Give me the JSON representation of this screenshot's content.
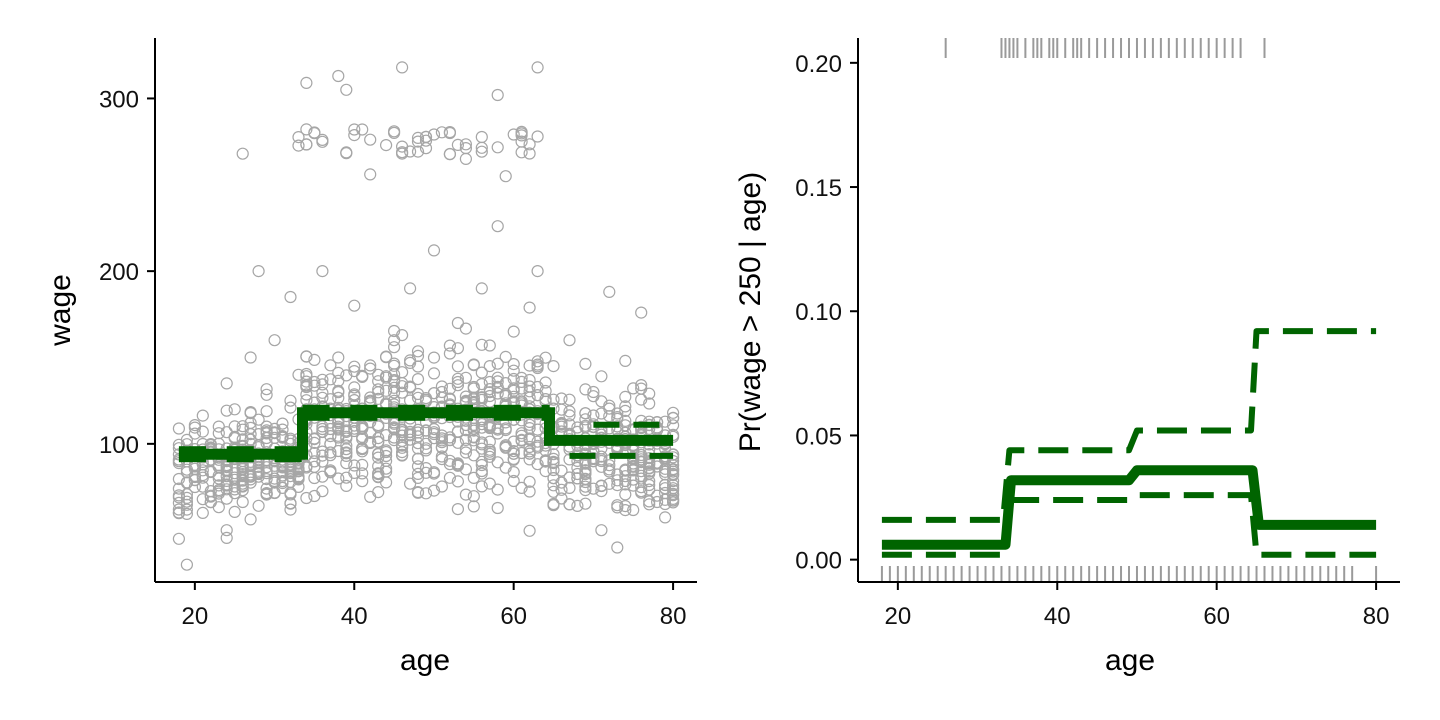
{
  "colors": {
    "fit": "#006400",
    "points": "#a6a6a6",
    "rug": "#9a9a9a",
    "axis": "#000000"
  },
  "chart_data": [
    {
      "type": "scatter",
      "title": "",
      "xlabel": "age",
      "ylabel": "wage",
      "xlim": [
        15,
        83
      ],
      "ylim": [
        20,
        335
      ],
      "xticks": [
        20,
        40,
        60,
        80
      ],
      "yticks": [
        100,
        200,
        300
      ],
      "grid": false,
      "legend": "none",
      "scatter_sample": [
        [
          18,
          62
        ],
        [
          18,
          45
        ],
        [
          19,
          30
        ],
        [
          19,
          85
        ],
        [
          20,
          75
        ],
        [
          21,
          60
        ],
        [
          22,
          95
        ],
        [
          22,
          70
        ],
        [
          23,
          110
        ],
        [
          24,
          135
        ],
        [
          24,
          50
        ],
        [
          25,
          120
        ],
        [
          26,
          268
        ],
        [
          26,
          90
        ],
        [
          27,
          150
        ],
        [
          28,
          200
        ],
        [
          29,
          110
        ],
        [
          30,
          160
        ],
        [
          31,
          95
        ],
        [
          32,
          185
        ],
        [
          32,
          125
        ],
        [
          33,
          140
        ],
        [
          34,
          309
        ],
        [
          35,
          120
        ],
        [
          36,
          276
        ],
        [
          36,
          200
        ],
        [
          37,
          95
        ],
        [
          38,
          313
        ],
        [
          38,
          150
        ],
        [
          39,
          305
        ],
        [
          40,
          180
        ],
        [
          41,
          282
        ],
        [
          41,
          110
        ],
        [
          42,
          256
        ],
        [
          43,
          140
        ],
        [
          44,
          273
        ],
        [
          45,
          160
        ],
        [
          46,
          318
        ],
        [
          46,
          120
        ],
        [
          47,
          190
        ],
        [
          48,
          275
        ],
        [
          49,
          100
        ],
        [
          50,
          212
        ],
        [
          51,
          130
        ],
        [
          52,
          280
        ],
        [
          53,
          170
        ],
        [
          54,
          265
        ],
        [
          55,
          115
        ],
        [
          56,
          190
        ],
        [
          57,
          145
        ],
        [
          58,
          226
        ],
        [
          58,
          302
        ],
        [
          59,
          255
        ],
        [
          60,
          165
        ],
        [
          61,
          275
        ],
        [
          62,
          120
        ],
        [
          63,
          318
        ],
        [
          63,
          200
        ],
        [
          64,
          90
        ],
        [
          65,
          145
        ],
        [
          66,
          110
        ],
        [
          67,
          160
        ],
        [
          68,
          80
        ],
        [
          70,
          130
        ],
        [
          71,
          50
        ],
        [
          72,
          188
        ],
        [
          73,
          40
        ],
        [
          74,
          148
        ],
        [
          75,
          85
        ],
        [
          76,
          176
        ],
        [
          78,
          70
        ],
        [
          80,
          85
        ]
      ],
      "series": [
        {
          "role": "fit",
          "x": [
            18,
            33.5,
            33.5,
            64.5,
            64.5,
            80
          ],
          "y": [
            94,
            94,
            118,
            118,
            102,
            102
          ]
        },
        {
          "role": "upper-band",
          "x": [
            70,
            80
          ],
          "y": [
            111,
            111
          ]
        },
        {
          "role": "lower-band",
          "x": [
            67,
            80
          ],
          "y": [
            93,
            93
          ]
        }
      ]
    },
    {
      "type": "line",
      "title": "",
      "xlabel": "age",
      "ylabel": "Pr(wage > 250 | age)",
      "xlim": [
        15,
        83
      ],
      "ylim": [
        -0.009,
        0.21
      ],
      "xticks": [
        20,
        40,
        60,
        80
      ],
      "yticks": [
        0.0,
        0.05,
        0.1,
        0.15,
        0.2
      ],
      "ytick_labels": [
        "0.00",
        "0.05",
        "0.10",
        "0.15",
        "0.20"
      ],
      "grid": false,
      "legend": "none",
      "series": [
        {
          "role": "fit",
          "x": [
            18,
            33.5,
            34.2,
            49,
            50,
            64.5,
            65.3,
            80
          ],
          "y": [
            0.006,
            0.006,
            0.032,
            0.032,
            0.036,
            0.036,
            0.014,
            0.014
          ]
        },
        {
          "role": "upper-band",
          "x": [
            18,
            33.2,
            34.0,
            49,
            50,
            64.3,
            65.0,
            80
          ],
          "y": [
            0.016,
            0.016,
            0.044,
            0.044,
            0.052,
            0.052,
            0.092,
            0.092
          ]
        },
        {
          "role": "lower-band",
          "x": [
            18,
            33.2,
            34.0,
            49,
            50,
            64.3,
            65.0,
            80
          ],
          "y": [
            0.002,
            0.002,
            0.024,
            0.024,
            0.026,
            0.026,
            0.002,
            0.002
          ]
        }
      ],
      "rug_top": [
        26,
        33,
        33.5,
        34,
        34.5,
        35,
        36,
        37,
        37.5,
        38,
        39,
        39.5,
        40,
        41,
        42,
        42.5,
        43,
        44,
        45,
        46,
        47,
        48,
        49,
        50,
        51,
        52,
        53,
        54,
        55,
        56,
        57,
        58,
        59,
        60,
        61,
        62,
        63,
        66
      ],
      "rug_bottom": [
        18,
        19,
        20,
        21,
        22,
        23,
        24,
        25,
        26,
        27,
        28,
        29,
        30,
        31,
        32,
        33,
        34,
        35,
        36,
        37,
        38,
        39,
        40,
        41,
        42,
        43,
        44,
        45,
        46,
        47,
        48,
        49,
        50,
        51,
        52,
        53,
        54,
        55,
        56,
        57,
        58,
        59,
        60,
        61,
        62,
        63,
        64,
        65,
        66,
        67,
        68,
        69,
        70,
        71,
        72,
        73,
        74,
        75,
        76,
        77,
        80
      ]
    }
  ]
}
